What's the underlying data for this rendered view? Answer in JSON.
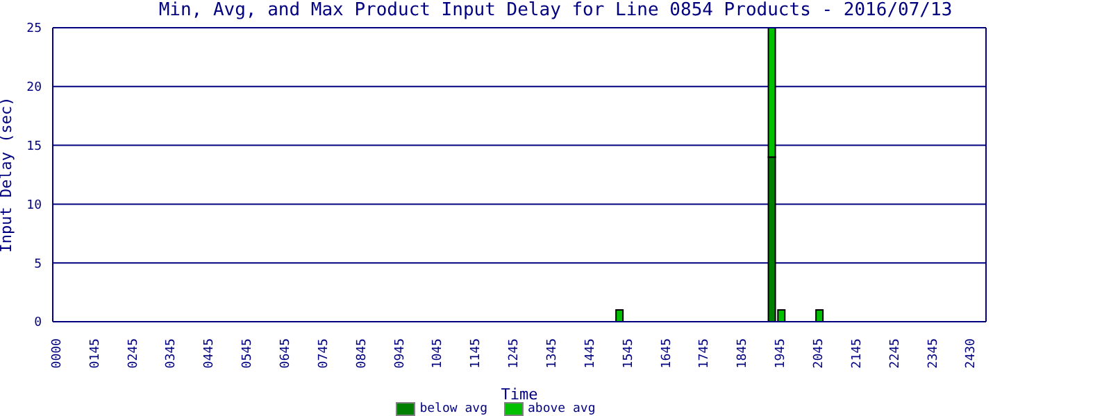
{
  "chart_data": {
    "type": "bar",
    "title": "Min, Avg, and Max Product Input Delay for Line 0854 Products - 2016/07/13",
    "xlabel": "Time",
    "ylabel": "Input Delay (sec)",
    "categories": [
      "0000",
      null,
      null,
      null,
      "0145",
      null,
      null,
      null,
      "0245",
      null,
      null,
      null,
      "0345",
      null,
      null,
      null,
      "0445",
      null,
      null,
      null,
      "0545",
      null,
      null,
      null,
      "0645",
      null,
      null,
      null,
      "0745",
      null,
      null,
      null,
      "0845",
      null,
      null,
      null,
      "0945",
      null,
      null,
      null,
      "1045",
      null,
      null,
      null,
      "1145",
      null,
      null,
      null,
      "1245",
      null,
      null,
      null,
      "1345",
      null,
      null,
      null,
      "1445",
      null,
      null,
      null,
      "1545",
      null,
      null,
      null,
      "1645",
      null,
      null,
      null,
      "1745",
      null,
      null,
      null,
      "1845",
      null,
      null,
      null,
      "1945",
      null,
      null,
      null,
      "2045",
      null,
      null,
      null,
      "2145",
      null,
      null,
      null,
      "2245",
      null,
      null,
      null,
      "2345",
      null,
      null,
      null,
      "2430",
      null
    ],
    "series": [
      {
        "name": "below avg",
        "color": "#008000",
        "values": [
          null,
          null,
          null,
          null,
          null,
          null,
          null,
          null,
          null,
          null,
          null,
          null,
          null,
          null,
          null,
          null,
          null,
          null,
          null,
          null,
          null,
          null,
          null,
          null,
          null,
          null,
          null,
          null,
          null,
          null,
          null,
          null,
          null,
          null,
          null,
          null,
          null,
          null,
          null,
          null,
          null,
          null,
          null,
          null,
          null,
          null,
          null,
          null,
          null,
          null,
          null,
          null,
          null,
          null,
          null,
          null,
          null,
          null,
          null,
          null,
          null,
          null,
          null,
          null,
          null,
          null,
          null,
          null,
          null,
          null,
          null,
          null,
          null,
          null,
          null,
          14,
          null,
          null,
          null,
          null,
          null,
          null,
          null,
          null,
          null,
          null,
          null,
          null,
          null,
          null,
          null,
          null,
          null,
          null,
          null,
          null,
          null,
          null
        ]
      },
      {
        "name": "above avg",
        "color": "#00c000",
        "values": [
          null,
          null,
          null,
          null,
          null,
          null,
          null,
          null,
          null,
          null,
          null,
          null,
          null,
          null,
          null,
          null,
          null,
          null,
          null,
          null,
          null,
          null,
          null,
          null,
          null,
          null,
          null,
          null,
          null,
          null,
          null,
          null,
          null,
          null,
          null,
          null,
          null,
          null,
          null,
          null,
          null,
          null,
          null,
          null,
          null,
          null,
          null,
          null,
          null,
          null,
          null,
          null,
          null,
          null,
          null,
          null,
          null,
          null,
          null,
          1,
          null,
          null,
          null,
          null,
          null,
          null,
          null,
          null,
          null,
          null,
          null,
          null,
          null,
          null,
          null,
          11,
          1,
          null,
          null,
          null,
          1,
          null,
          null,
          null,
          null,
          null,
          null,
          null,
          null,
          null,
          null,
          null,
          null,
          null,
          null,
          null,
          null,
          null
        ]
      }
    ],
    "stacked": true,
    "ylim": [
      0,
      25
    ],
    "yticks": [
      0,
      5,
      10,
      15,
      20,
      25
    ],
    "grid": "y",
    "legend": "bottom"
  }
}
